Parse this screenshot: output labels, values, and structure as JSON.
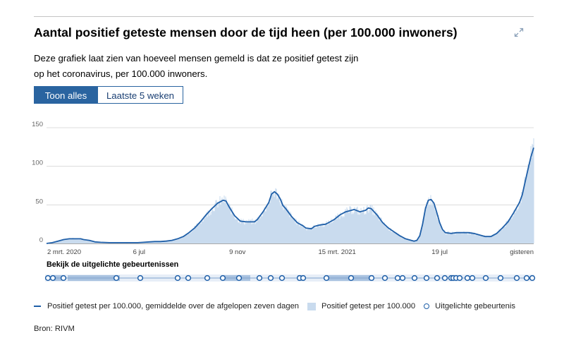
{
  "header": {
    "title": "Aantal positief geteste mensen door de tijd heen (per 100.000 inwoners)",
    "description": "Deze grafiek laat zien van hoeveel mensen gemeld is dat ze positief getest zijn op het coronavirus, per 100.000 inwoners.",
    "expand_icon": "expand-icon"
  },
  "toggle": {
    "all_label": "Toon alles",
    "five_weeks_label": "Laatste 5 weken",
    "active": "all"
  },
  "events": {
    "label": "Bekijk de uitgelichte gebeurtenissen",
    "count": 36
  },
  "legend": {
    "line_label": "Positief getest per 100.000, gemiddelde over de afgelopen zeven dagen",
    "area_label": "Positief getest per 100.000",
    "event_label": "Uitgelichte gebeurtenis"
  },
  "source": "Bron: RIVM",
  "colors": {
    "line": "#1f5fa8",
    "area": "#c9dbee",
    "button_active": "#2a64a0",
    "grid": "#dcdcdc"
  },
  "chart_data": {
    "type": "line",
    "x_tick_labels": [
      "2 mrt. 2020",
      "6 jul",
      "9 nov",
      "15 mrt. 2021",
      "19 jul",
      "gisteren"
    ],
    "y_ticks": [
      0,
      50,
      100,
      150
    ],
    "ylim": [
      0,
      150
    ],
    "grid": true,
    "series": [
      {
        "name": "Positief getest per 100.000, gemiddelde over de afgelopen zeven dagen",
        "style": "line",
        "points": [
          [
            0,
            0
          ],
          [
            2,
            1
          ],
          [
            4,
            3
          ],
          [
            6,
            5
          ],
          [
            8,
            6
          ],
          [
            10,
            6
          ],
          [
            12,
            6
          ],
          [
            13,
            5
          ],
          [
            15,
            4
          ],
          [
            17,
            2
          ],
          [
            19,
            1.5
          ],
          [
            22,
            1
          ],
          [
            25,
            1
          ],
          [
            28,
            1
          ],
          [
            30,
            1
          ],
          [
            32,
            1
          ],
          [
            34,
            1.5
          ],
          [
            36,
            2
          ],
          [
            38,
            2.5
          ],
          [
            40,
            2.5
          ],
          [
            42,
            3
          ],
          [
            44,
            4
          ],
          [
            46,
            6
          ],
          [
            48,
            9
          ],
          [
            50,
            14
          ],
          [
            52,
            20
          ],
          [
            54,
            28
          ],
          [
            56,
            37
          ],
          [
            58,
            45
          ],
          [
            60,
            52
          ],
          [
            62,
            56
          ],
          [
            63,
            55
          ],
          [
            64,
            48
          ],
          [
            66,
            36
          ],
          [
            68,
            29
          ],
          [
            70,
            28
          ],
          [
            72,
            28
          ],
          [
            73,
            28
          ],
          [
            74,
            31
          ],
          [
            76,
            41
          ],
          [
            78,
            53
          ],
          [
            79,
            64
          ],
          [
            80,
            67
          ],
          [
            81,
            64
          ],
          [
            82,
            58
          ],
          [
            83,
            49
          ],
          [
            84,
            45
          ],
          [
            86,
            35
          ],
          [
            88,
            27
          ],
          [
            90,
            23
          ],
          [
            91,
            20
          ],
          [
            93,
            19
          ],
          [
            94,
            22
          ],
          [
            96,
            24
          ],
          [
            98,
            25
          ],
          [
            99,
            27
          ],
          [
            101,
            31
          ],
          [
            103,
            37
          ],
          [
            105,
            41
          ],
          [
            107,
            43
          ],
          [
            108,
            44
          ],
          [
            110,
            41
          ],
          [
            112,
            43
          ],
          [
            113,
            46
          ],
          [
            114,
            45
          ],
          [
            116,
            37
          ],
          [
            118,
            27
          ],
          [
            120,
            20
          ],
          [
            122,
            15
          ],
          [
            124,
            10
          ],
          [
            126,
            6
          ],
          [
            128,
            4
          ],
          [
            129,
            3
          ],
          [
            130,
            4
          ],
          [
            131,
            10
          ],
          [
            132,
            25
          ],
          [
            133,
            45
          ],
          [
            134,
            56
          ],
          [
            135,
            57
          ],
          [
            136,
            52
          ],
          [
            137,
            40
          ],
          [
            138,
            27
          ],
          [
            139,
            18
          ],
          [
            140,
            14
          ],
          [
            142,
            13
          ],
          [
            144,
            14
          ],
          [
            146,
            14
          ],
          [
            148,
            14
          ],
          [
            150,
            13
          ],
          [
            152,
            11
          ],
          [
            154,
            9
          ],
          [
            156,
            9
          ],
          [
            158,
            13
          ],
          [
            160,
            20
          ],
          [
            162,
            28
          ],
          [
            164,
            40
          ],
          [
            166,
            53
          ],
          [
            167,
            63
          ],
          [
            168,
            80
          ],
          [
            169,
            96
          ],
          [
            170,
            112
          ],
          [
            171,
            124
          ]
        ]
      },
      {
        "name": "Positief getest per 100.000",
        "style": "area",
        "note": "daily values, noisy around the 7-day average"
      }
    ]
  }
}
